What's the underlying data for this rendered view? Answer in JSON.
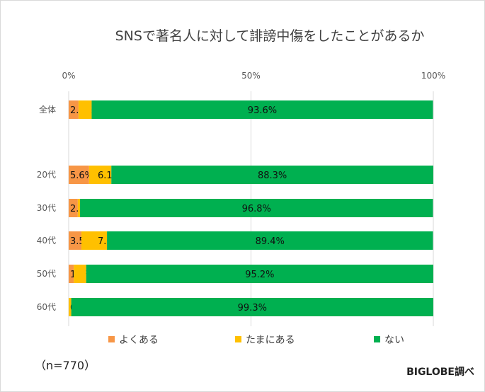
{
  "chart_data": {
    "type": "bar",
    "orientation": "horizontal",
    "stacked": "percent",
    "title": "SNSで著名人に対して誹謗中傷をしたことがあるか",
    "categories": [
      "全体",
      "20代",
      "30代",
      "40代",
      "50代",
      "60代"
    ],
    "series": [
      {
        "name": "よくある",
        "color": "#F79646",
        "values": [
          2.7,
          5.6,
          2.5,
          3.5,
          1.4,
          0
        ]
      },
      {
        "name": "たまにある",
        "color": "#FFC000",
        "values": [
          3.6,
          6.1,
          0.6,
          7.0,
          3.4,
          0.7
        ]
      },
      {
        "name": "ない",
        "color": "#00B050",
        "values": [
          93.6,
          88.3,
          96.8,
          89.4,
          95.2,
          99.3
        ]
      }
    ],
    "xlim": [
      0,
      100
    ],
    "xticks": [
      "0%",
      "50%",
      "100%"
    ],
    "legend": "bottom",
    "grid": true
  },
  "note": "（n=770）",
  "brand": "BIGLOBE調べ"
}
